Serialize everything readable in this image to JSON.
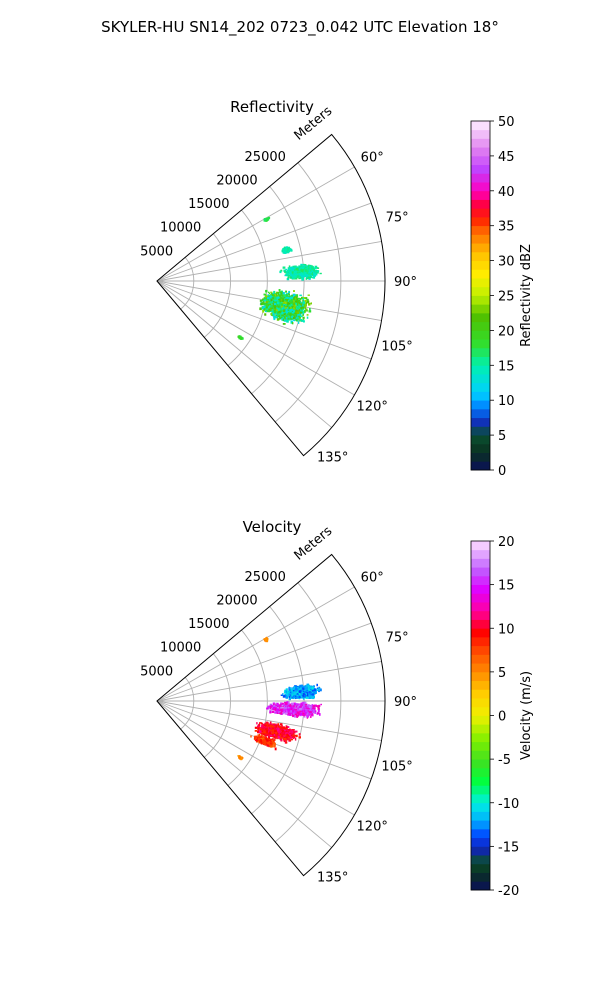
{
  "figure": {
    "suptitle": "SKYLER-HU  SN14_202  0723_0.042 UTC Elevation 18°"
  },
  "chart_data": [
    {
      "type": "heatmap",
      "subtype": "polar-sector-ppi",
      "title": "Reflectivity",
      "range_label": "Meters",
      "range_ticks": [
        5000,
        10000,
        15000,
        20000,
        25000
      ],
      "rlim": [
        0,
        31000
      ],
      "azimuth_ticks_deg": [
        60,
        75,
        90,
        105,
        120,
        135
      ],
      "azimuth_tick_labels": [
        "60°",
        "75°",
        "90°",
        "105°",
        "120°",
        "135°"
      ],
      "azimuth_range_deg": [
        50,
        140
      ],
      "grid": true,
      "colorbar": {
        "label": "Reflectivity dBZ",
        "min": 0,
        "max": 50,
        "ticks": [
          0,
          5,
          10,
          15,
          20,
          25,
          30,
          35,
          40,
          45,
          50
        ],
        "colormap": "pyart_HomeyerRainbow-like"
      },
      "echo_regions": [
        {
          "az_center": 101,
          "r_center": 17500,
          "az_spread": 9,
          "r_spread": 4500,
          "value_min": 12,
          "value_max": 24
        },
        {
          "az_center": 86,
          "r_center": 19500,
          "az_spread": 4,
          "r_spread": 3500,
          "value_min": 13,
          "value_max": 17
        },
        {
          "az_center": 76,
          "r_center": 18000,
          "az_spread": 2,
          "r_spread": 1000,
          "value_min": 14,
          "value_max": 16
        },
        {
          "az_center": 60,
          "r_center": 17000,
          "az_spread": 1,
          "r_spread": 500,
          "value_min": 16,
          "value_max": 18
        },
        {
          "az_center": 124,
          "r_center": 13500,
          "az_spread": 1,
          "r_spread": 500,
          "value_min": 17,
          "value_max": 20
        }
      ]
    },
    {
      "type": "heatmap",
      "subtype": "polar-sector-ppi",
      "title": "Velocity",
      "range_label": "Meters",
      "range_ticks": [
        5000,
        10000,
        15000,
        20000,
        25000
      ],
      "rlim": [
        0,
        31000
      ],
      "azimuth_ticks_deg": [
        60,
        75,
        90,
        105,
        120,
        135
      ],
      "azimuth_tick_labels": [
        "60°",
        "75°",
        "90°",
        "105°",
        "120°",
        "135°"
      ],
      "azimuth_range_deg": [
        50,
        140
      ],
      "grid": true,
      "colorbar": {
        "label": "Velocity (m/s)",
        "min": -20,
        "max": 20,
        "ticks": [
          -20,
          -15,
          -10,
          -5,
          0,
          5,
          10,
          15,
          20
        ],
        "colormap": "pyart_BuDRd18-like rainbow"
      },
      "echo_regions": [
        {
          "az_center": 86,
          "r_center": 19500,
          "az_spread": 4,
          "r_spread": 3500,
          "value_min": -14,
          "value_max": -10
        },
        {
          "az_center": 93,
          "r_center": 18500,
          "az_spread": 4,
          "r_spread": 5000,
          "value_min": 12,
          "value_max": 18
        },
        {
          "az_center": 104,
          "r_center": 16500,
          "az_spread": 5,
          "r_spread": 4000,
          "value_min": 8,
          "value_max": 12
        },
        {
          "az_center": 110,
          "r_center": 15500,
          "az_spread": 3,
          "r_spread": 2500,
          "value_min": 6,
          "value_max": 10
        },
        {
          "az_center": 60,
          "r_center": 17000,
          "az_spread": 1,
          "r_spread": 500,
          "value_min": 4,
          "value_max": 6
        },
        {
          "az_center": 124,
          "r_center": 13500,
          "az_spread": 1,
          "r_spread": 500,
          "value_min": 4,
          "value_max": 6
        }
      ]
    }
  ]
}
